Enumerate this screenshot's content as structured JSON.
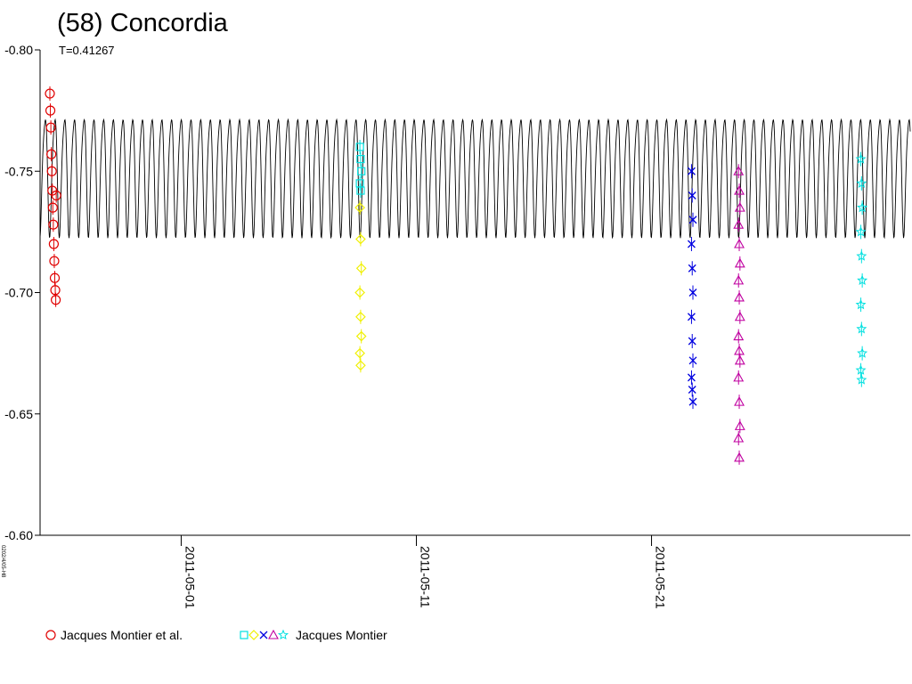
{
  "chart_data": {
    "type": "scatter",
    "title": "(58) Concordia",
    "subtitle": "T=0.41267",
    "side_code": "0202/4/05-H8",
    "y_axis": {
      "ticks": [
        -0.8,
        -0.75,
        -0.7,
        -0.65,
        -0.6
      ],
      "tick_labels": [
        "-0.80",
        "-0.75",
        "-0.70",
        "-0.65",
        "-0.60"
      ],
      "range": [
        -0.8,
        -0.6
      ],
      "inverted": true
    },
    "x_axis": {
      "type": "date",
      "range": [
        "2011-04-25",
        "2011-06-01"
      ],
      "ticks": [
        "2011-05-01",
        "2011-05-11",
        "2011-05-21"
      ],
      "tick_labels": [
        "2011-05-01",
        "2011-05-11",
        "2011-05-21"
      ]
    },
    "model_curve": {
      "period_days": 0.41267,
      "max": -0.722,
      "min": -0.778,
      "secondary_min": -0.745,
      "color": "#000000"
    },
    "series": [
      {
        "name": "Jacques Montier et al.",
        "color": "#e00000",
        "marker": "circle",
        "x": [
          "2011-04-25",
          "2011-04-25",
          "2011-04-25",
          "2011-04-25",
          "2011-04-25",
          "2011-04-25",
          "2011-04-25",
          "2011-04-25",
          "2011-04-25",
          "2011-04-25",
          "2011-04-25",
          "2011-04-25",
          "2011-04-25",
          "2011-04-25"
        ],
        "x_hours": [
          10,
          10.5,
          11,
          11.5,
          12,
          12.5,
          13,
          13.5,
          14,
          14.5,
          15,
          15.5,
          16,
          16.5
        ],
        "y": [
          -0.782,
          -0.775,
          -0.768,
          -0.757,
          -0.75,
          -0.742,
          -0.735,
          -0.728,
          -0.72,
          -0.713,
          -0.706,
          -0.701,
          -0.697,
          -0.74
        ]
      },
      {
        "name": "",
        "color": "#00e0e0",
        "marker": "square",
        "x_day": 13.6,
        "y": [
          -0.76,
          -0.755,
          -0.75,
          -0.745,
          -0.742
        ]
      },
      {
        "name": "",
        "color": "#f0f000",
        "marker": "diamond",
        "x_day": 13.6,
        "y": [
          -0.735,
          -0.722,
          -0.71,
          -0.7,
          -0.69,
          -0.682,
          -0.675,
          -0.67
        ]
      },
      {
        "name": "",
        "color": "#0000e0",
        "marker": "x",
        "x_day": 27.7,
        "y": [
          -0.75,
          -0.74,
          -0.73,
          -0.72,
          -0.71,
          -0.7,
          -0.69,
          -0.68,
          -0.672,
          -0.665,
          -0.66,
          -0.655
        ]
      },
      {
        "name": "",
        "color": "#c000a0",
        "marker": "triangle",
        "x_day": 29.7,
        "y": [
          -0.75,
          -0.742,
          -0.735,
          -0.728,
          -0.72,
          -0.712,
          -0.705,
          -0.698,
          -0.69,
          -0.682,
          -0.676,
          -0.672,
          -0.665,
          -0.655,
          -0.645,
          -0.64,
          -0.632
        ]
      },
      {
        "name": "Jacques Montier",
        "color": "#00e0e0",
        "marker": "star",
        "x_day": 34.9,
        "y": [
          -0.755,
          -0.745,
          -0.735,
          -0.725,
          -0.715,
          -0.705,
          -0.695,
          -0.685,
          -0.675,
          -0.668,
          -0.664
        ]
      }
    ],
    "legend": [
      {
        "label": "Jacques Montier et al.",
        "markers": [
          "circle"
        ],
        "colors": [
          "#e00000"
        ]
      },
      {
        "label": "Jacques Montier",
        "markers": [
          "square",
          "diamond",
          "x",
          "triangle",
          "star"
        ],
        "colors": [
          "#00e0e0",
          "#f0f000",
          "#0000e0",
          "#c000a0",
          "#00e0e0"
        ]
      }
    ],
    "legend_placement": "bottom-left",
    "grid": false
  }
}
